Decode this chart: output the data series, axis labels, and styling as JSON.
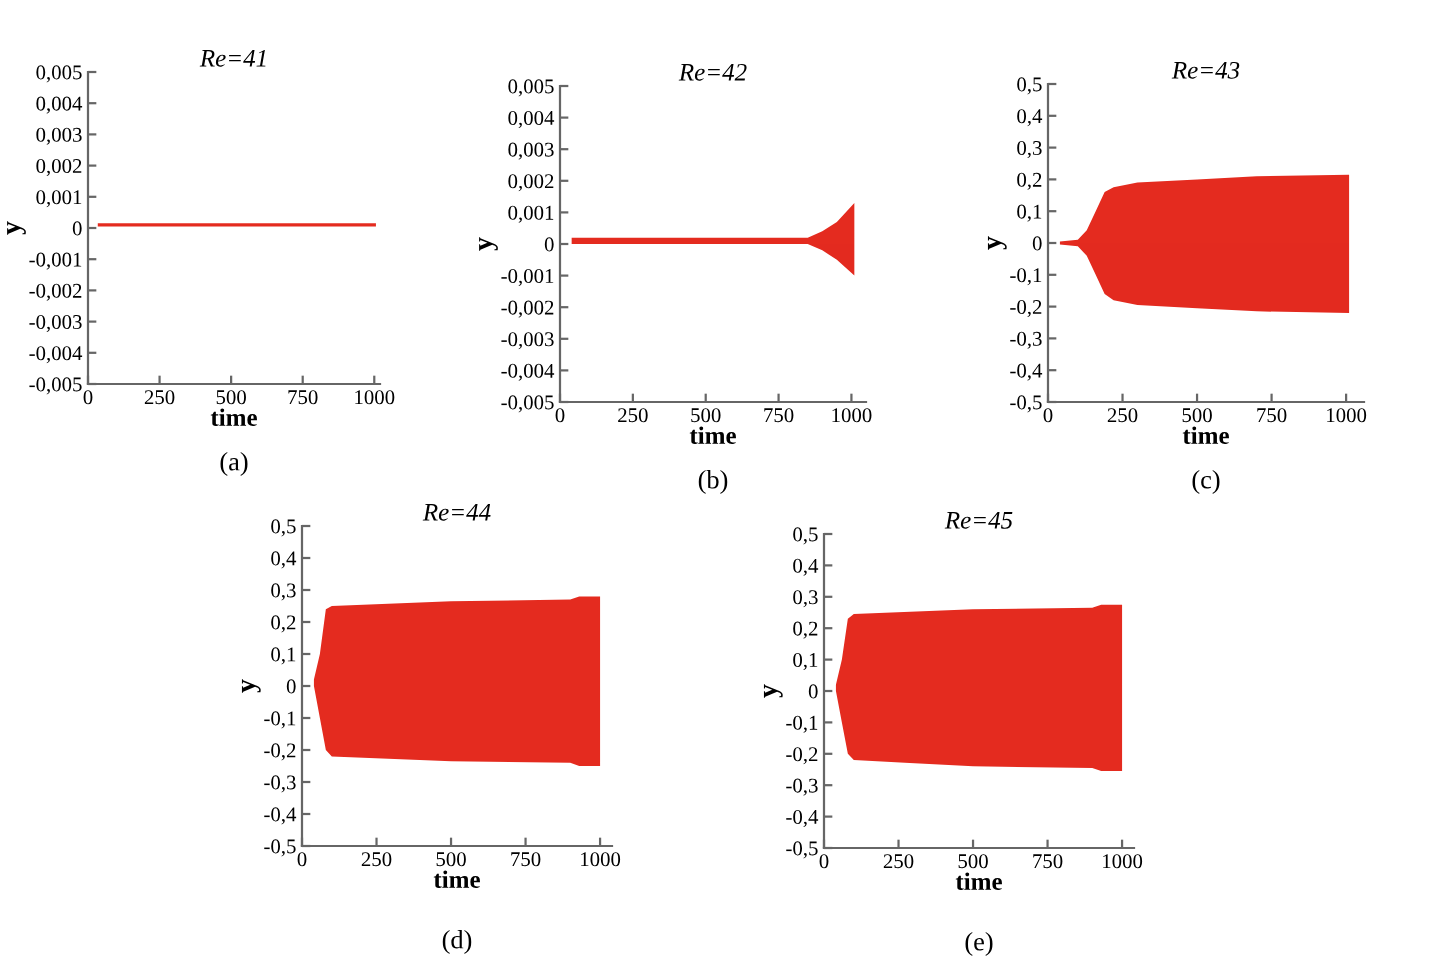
{
  "chart_data": [
    {
      "type": "line",
      "title": "Re=41",
      "xlabel": "time",
      "ylabel": "y",
      "annotations": [
        "(a)"
      ],
      "xlim": [
        0,
        1020
      ],
      "xticks": [
        0,
        250,
        500,
        750,
        1000
      ],
      "ylim": [
        -0.005,
        0.005
      ],
      "yticks": [
        {
          "value": -0.005,
          "label": "-0,005"
        },
        {
          "value": -0.004,
          "label": "-0,004"
        },
        {
          "value": -0.003,
          "label": "-0,003"
        },
        {
          "value": -0.002,
          "label": "-0,002"
        },
        {
          "value": -0.001,
          "label": "-0,001"
        },
        {
          "value": 0,
          "label": "0"
        },
        {
          "value": 0.001,
          "label": "0,001"
        },
        {
          "value": 0.002,
          "label": "0,002"
        },
        {
          "value": 0.003,
          "label": "0,003"
        },
        {
          "value": 0.004,
          "label": "0,004"
        },
        {
          "value": 0.005,
          "label": "0,005"
        }
      ],
      "series": [
        {
          "color": "#e42b1f",
          "x": [
            40,
            1000
          ],
          "values": [
            0.0001,
            0.0001
          ]
        }
      ]
    },
    {
      "type": "line",
      "title": "Re=42",
      "xlabel": "time",
      "ylabel": "y",
      "annotations": [
        "(b)"
      ],
      "xlim": [
        0,
        1050
      ],
      "xticks": [
        0,
        250,
        500,
        750,
        1000
      ],
      "ylim": [
        -0.005,
        0.005
      ],
      "yticks": [
        {
          "value": -0.005,
          "label": "-0,005"
        },
        {
          "value": -0.004,
          "label": "-0,004"
        },
        {
          "value": -0.003,
          "label": "-0,003"
        },
        {
          "value": -0.002,
          "label": "-0,002"
        },
        {
          "value": -0.001,
          "label": "-0,001"
        },
        {
          "value": 0,
          "label": "0"
        },
        {
          "value": 0.001,
          "label": "0,001"
        },
        {
          "value": 0.002,
          "label": "0,002"
        },
        {
          "value": 0.003,
          "label": "0,003"
        },
        {
          "value": 0.004,
          "label": "0,004"
        },
        {
          "value": 0.005,
          "label": "0,005"
        }
      ],
      "series": [
        {
          "type": "area",
          "color": "#e42b1f",
          "x": [
            40,
            700,
            850,
            900,
            950,
            1010
          ],
          "values": [
            0.0002,
            0.0002,
            0.0002,
            0.0004,
            0.0007,
            0.0013
          ]
        },
        {
          "type": "area",
          "color": "#e32a1f",
          "x": [
            850,
            900,
            950,
            1010
          ],
          "values": [
            0,
            -0.0002,
            -0.0005,
            -0.001
          ]
        }
      ]
    },
    {
      "type": "line",
      "title": "Re=43",
      "xlabel": "time",
      "ylabel": "y",
      "annotations": [
        "(c)"
      ],
      "xlim": [
        0,
        1060
      ],
      "xticks": [
        0,
        250,
        500,
        750,
        1000
      ],
      "ylim": [
        -0.5,
        0.5
      ],
      "yticks": [
        {
          "value": -0.5,
          "label": "-0,5"
        },
        {
          "value": -0.4,
          "label": "-0,4"
        },
        {
          "value": -0.3,
          "label": "-0,3"
        },
        {
          "value": -0.2,
          "label": "-0,2"
        },
        {
          "value": -0.1,
          "label": "-0,1"
        },
        {
          "value": 0,
          "label": "0"
        },
        {
          "value": 0.1,
          "label": "0,1"
        },
        {
          "value": 0.2,
          "label": "0,2"
        },
        {
          "value": 0.3,
          "label": "0,3"
        },
        {
          "value": 0.4,
          "label": "0,4"
        },
        {
          "value": 0.5,
          "label": "0,5"
        }
      ],
      "series": [
        {
          "color": "#e42b1f",
          "x": [
            40,
            100,
            130,
            160,
            190,
            220,
            300,
            500,
            700,
            1010
          ],
          "type": "area",
          "values": [
            0.005,
            0.01,
            0.04,
            0.1,
            0.16,
            0.175,
            0.19,
            0.2,
            0.21,
            0.215
          ]
        },
        {
          "type": "area",
          "color": "#e32a1f",
          "x": [
            40,
            100,
            130,
            160,
            190,
            220,
            300,
            500,
            700,
            1010
          ],
          "values": [
            -0.005,
            -0.01,
            -0.04,
            -0.1,
            -0.16,
            -0.18,
            -0.195,
            -0.205,
            -0.215,
            -0.22
          ]
        }
      ]
    },
    {
      "type": "line",
      "title": "Re=44",
      "xlabel": "time",
      "ylabel": "y",
      "annotations": [
        "(d)"
      ],
      "xlim": [
        0,
        1040
      ],
      "xticks": [
        0,
        250,
        500,
        750,
        1000
      ],
      "ylim": [
        -0.5,
        0.5
      ],
      "yticks": [
        {
          "value": -0.5,
          "label": "-0,5"
        },
        {
          "value": -0.4,
          "label": "-0,4"
        },
        {
          "value": -0.3,
          "label": "-0,3"
        },
        {
          "value": -0.2,
          "label": "-0,2"
        },
        {
          "value": -0.1,
          "label": "-0,1"
        },
        {
          "value": 0,
          "label": "0"
        },
        {
          "value": 0.1,
          "label": "0,1"
        },
        {
          "value": 0.2,
          "label": "0,2"
        },
        {
          "value": 0.3,
          "label": "0,3"
        },
        {
          "value": 0.4,
          "label": "0,4"
        },
        {
          "value": 0.5,
          "label": "0,5"
        }
      ],
      "series": [
        {
          "color": "#e42b1f",
          "x": [
            40,
            60,
            80,
            100,
            500,
            900,
            930,
            1000
          ],
          "type": "area",
          "values": [
            0.02,
            0.1,
            0.24,
            0.25,
            0.265,
            0.27,
            0.28,
            0.28
          ]
        },
        {
          "type": "area",
          "color": "#e42b1f",
          "x": [
            40,
            60,
            80,
            100,
            500,
            900,
            930,
            1000
          ],
          "values": [
            0,
            -0.1,
            -0.2,
            -0.22,
            -0.235,
            -0.24,
            -0.25,
            -0.25
          ]
        }
      ]
    },
    {
      "type": "line",
      "title": "Re=45",
      "xlabel": "time",
      "ylabel": "y",
      "annotations": [
        "(e)"
      ],
      "xlim": [
        0,
        1040
      ],
      "xticks": [
        0,
        250,
        500,
        750,
        1000
      ],
      "ylim": [
        -0.5,
        0.5
      ],
      "yticks": [
        {
          "value": -0.5,
          "label": "-0,5"
        },
        {
          "value": -0.4,
          "label": "-0,4"
        },
        {
          "value": -0.3,
          "label": "-0,3"
        },
        {
          "value": -0.2,
          "label": "-0,2"
        },
        {
          "value": -0.1,
          "label": "-0,1"
        },
        {
          "value": 0,
          "label": "0"
        },
        {
          "value": 0.1,
          "label": "0,1"
        },
        {
          "value": 0.2,
          "label": "0,2"
        },
        {
          "value": 0.3,
          "label": "0,3"
        },
        {
          "value": 0.4,
          "label": "0,4"
        },
        {
          "value": 0.5,
          "label": "0,5"
        }
      ],
      "series": [
        {
          "color": "#e42b1f",
          "x": [
            40,
            60,
            80,
            100,
            500,
            900,
            930,
            1000
          ],
          "type": "area",
          "values": [
            0.02,
            0.1,
            0.23,
            0.245,
            0.26,
            0.265,
            0.275,
            0.275
          ]
        },
        {
          "type": "area",
          "color": "#e42b1f",
          "x": [
            40,
            60,
            80,
            100,
            500,
            900,
            930,
            1000
          ],
          "values": [
            0,
            -0.1,
            -0.2,
            -0.22,
            -0.24,
            -0.245,
            -0.255,
            -0.255
          ]
        }
      ]
    }
  ]
}
